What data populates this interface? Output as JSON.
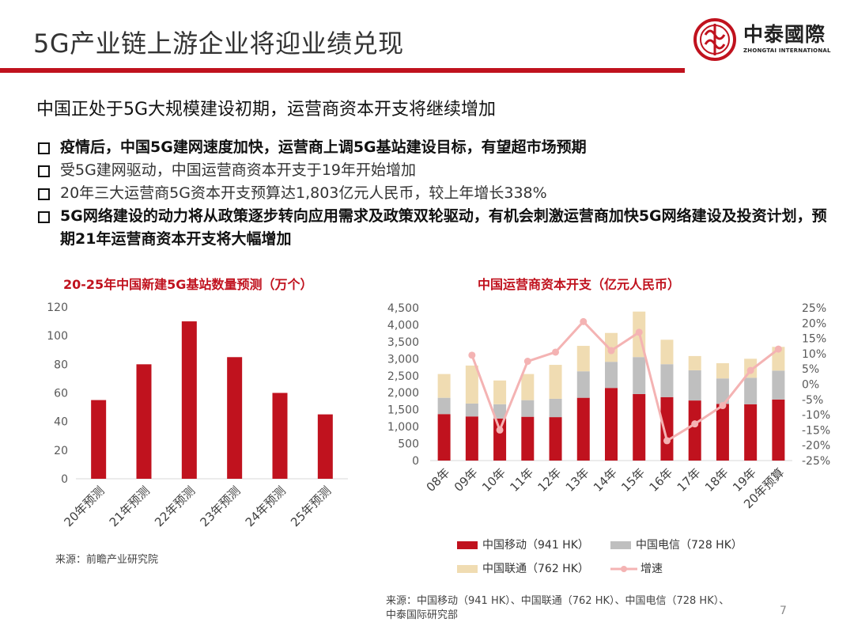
{
  "header": {
    "title": "5G产业链上游企业将迎业绩兑现",
    "logo_zh": "中泰國際",
    "logo_en": "ZHONGTAI INTERNATIONAL",
    "brand_color": "#c0121e"
  },
  "subtitle": "中国正处于5G大规模建设初期，运营商资本开支将继续增加",
  "bullets": [
    {
      "text": "疫情后，中国5G建网速度加快，运营商上调5G基站建设目标，有望超市场预期",
      "bold": true
    },
    {
      "text": "受5G建网驱动，中国运营商资本开支于19年开始增加",
      "bold": false
    },
    {
      "text": "20年三大运营商5G资本开支预算达1,803亿元人民币，较上年增长338%",
      "bold": false
    },
    {
      "text": "5G网络建设的动力将从政策逐步转向应用需求及政策双轮驱动，有机会刺激运营商加快5G网络建设及投资计划，预期21年运营商资本开支将大幅增加",
      "bold": true
    }
  ],
  "chart_data": [
    {
      "type": "bar",
      "title": "20-25年中国新建5G基站数量预测（万个）",
      "categories": [
        "20年预测",
        "21年预测",
        "22年预测",
        "23年预测",
        "24年预测",
        "25年预测"
      ],
      "values": [
        55,
        80,
        110,
        85,
        60,
        45
      ],
      "yticks": [
        "0",
        "20",
        "40",
        "60",
        "80",
        "100",
        "120"
      ],
      "ylim": [
        0,
        120
      ],
      "color": "#c0121e",
      "source": "来源：前瞻产业研究院"
    },
    {
      "type": "bar",
      "stacked": true,
      "title": "中国运营商资本开支（亿元人民币）",
      "categories": [
        "08年",
        "09年",
        "10年",
        "11年",
        "12年",
        "13年",
        "14年",
        "15年",
        "16年",
        "17年",
        "18年",
        "19年",
        "20年预算"
      ],
      "series": [
        {
          "name": "中国移动（941 HK）",
          "color": "#c0121e",
          "values": [
            1370,
            1300,
            1240,
            1290,
            1280,
            1850,
            2140,
            1960,
            1870,
            1770,
            1670,
            1660,
            1800
          ]
        },
        {
          "name": "中国电信（728 HK）",
          "color": "#bfbfbf",
          "values": [
            480,
            380,
            420,
            490,
            540,
            780,
            770,
            1090,
            970,
            890,
            750,
            780,
            850
          ]
        },
        {
          "name": "中国联通（762 HK）",
          "color": "#f0dcb2",
          "values": [
            700,
            1120,
            700,
            770,
            1000,
            750,
            850,
            1340,
            720,
            420,
            450,
            560,
            700
          ]
        }
      ],
      "line": {
        "name": "增速",
        "color": "#f4b3b3",
        "values": [
          null,
          9.5,
          -15,
          7.5,
          10.5,
          20.5,
          11,
          17,
          -18.5,
          -13,
          -7,
          4.5,
          11.5
        ]
      },
      "ylim": [
        0,
        4500
      ],
      "yticks": [
        "0",
        "500",
        "1,000",
        "1,500",
        "2,000",
        "2,500",
        "3,000",
        "3,500",
        "4,000",
        "4,500"
      ],
      "y2lim": [
        -25,
        25
      ],
      "y2ticks": [
        "-25%",
        "-20%",
        "-15%",
        "-10%",
        "-5%",
        "0%",
        "5%",
        "10%",
        "15%",
        "20%",
        "25%"
      ],
      "source_line1": "来源：中国移动（941 HK）、中国联通（762 HK）、中国电信（728 HK）、",
      "source_line2": "中泰国际研究部"
    }
  ],
  "page_number": "7"
}
